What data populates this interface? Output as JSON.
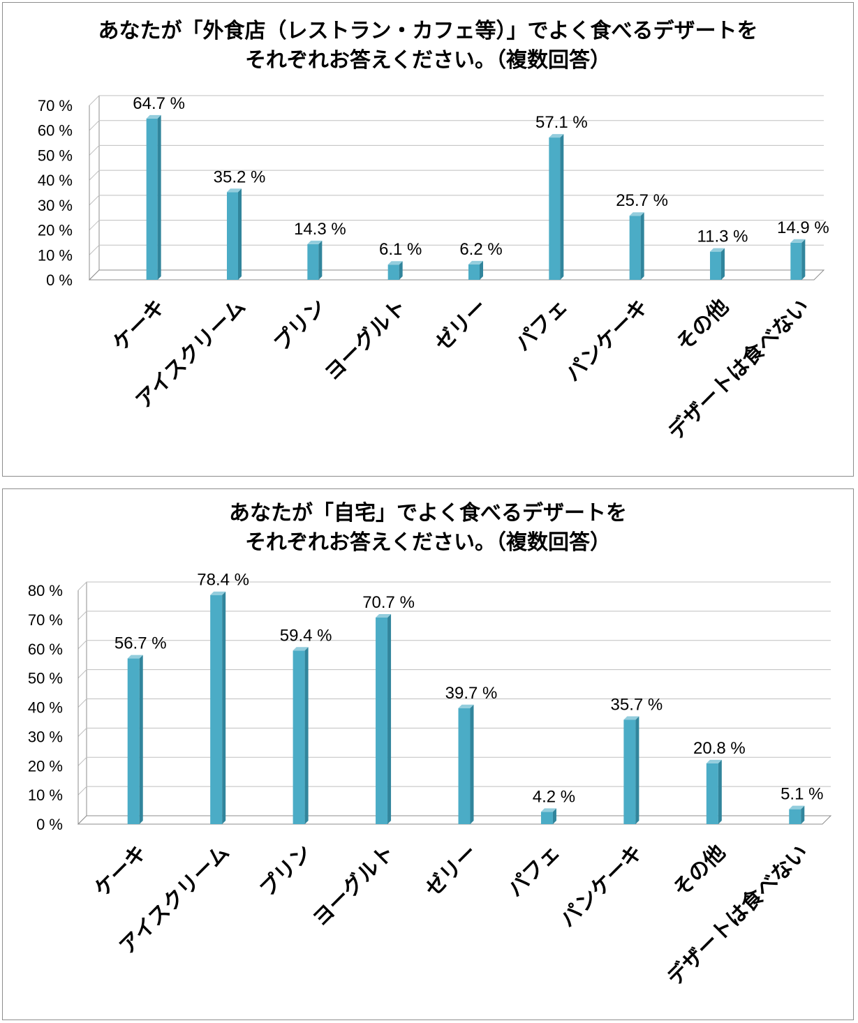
{
  "colors": {
    "bar_front": "#4bacc6",
    "bar_side": "#31859c",
    "bar_top": "#93cddd",
    "grid": "#bfbfbf",
    "axis": "#8c8c8c",
    "text": "#000000"
  },
  "charts": [
    {
      "title_line1": "あなたが「外食店（レストラン・カフェ等）」でよく食べるデザートを",
      "title_line2": "それぞれお答えください。（複数回答）"
    },
    {
      "title_line1": "あなたが「自宅」でよく食べるデザートを",
      "title_line2": "それぞれお答えください。（複数回答）"
    }
  ],
  "chart_data": [
    {
      "type": "bar",
      "title": "あなたが「外食店（レストラン・カフェ等）」でよく食べるデザートを それぞれお答えください。（複数回答）",
      "categories": [
        "ケーキ",
        "アイスクリーム",
        "プリン",
        "ヨーグルト",
        "ゼリー",
        "パフェ",
        "パンケーキ",
        "その他",
        "デザートは食べない"
      ],
      "values": [
        64.7,
        35.2,
        14.3,
        6.1,
        6.2,
        57.1,
        25.7,
        11.3,
        14.9
      ],
      "value_labels": [
        "64.7 %",
        "35.2 %",
        "14.3 %",
        "6.1 %",
        "6.2 %",
        "57.1 %",
        "25.7 %",
        "11.3 %",
        "14.9 %"
      ],
      "ylim": [
        0,
        70
      ],
      "y_ticks": [
        0,
        10,
        20,
        30,
        40,
        50,
        60,
        70
      ],
      "y_tick_labels": [
        "0 %",
        "10 %",
        "20 %",
        "30 %",
        "40 %",
        "50 %",
        "60 %",
        "70 %"
      ],
      "grid": true,
      "legend": "none"
    },
    {
      "type": "bar",
      "title": "あなたが「自宅」でよく食べるデザートを それぞれお答えください。（複数回答）",
      "categories": [
        "ケーキ",
        "アイスクリーム",
        "プリン",
        "ヨーグルト",
        "ゼリー",
        "パフェ",
        "パンケーキ",
        "その他",
        "デザートは食べない"
      ],
      "values": [
        56.7,
        78.4,
        59.4,
        70.7,
        39.7,
        4.2,
        35.7,
        20.8,
        5.1
      ],
      "value_labels": [
        "56.7 %",
        "78.4 %",
        "59.4 %",
        "70.7 %",
        "39.7 %",
        "4.2 %",
        "35.7 %",
        "20.8 %",
        "5.1 %"
      ],
      "ylim": [
        0,
        80
      ],
      "y_ticks": [
        0,
        10,
        20,
        30,
        40,
        50,
        60,
        70,
        80
      ],
      "y_tick_labels": [
        "0 %",
        "10 %",
        "20 %",
        "30 %",
        "40 %",
        "50 %",
        "60 %",
        "70 %",
        "80 %"
      ],
      "grid": true,
      "legend": "none"
    }
  ]
}
